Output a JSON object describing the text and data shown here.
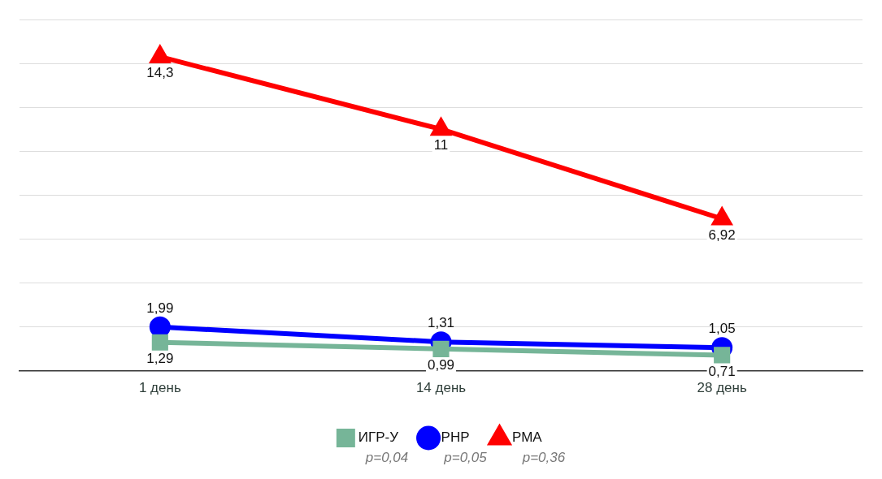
{
  "chart_data": {
    "type": "line",
    "categories": [
      "1 день",
      "14 день",
      "28 день"
    ],
    "series": [
      {
        "name": "ИГР-У",
        "color": "#76b598",
        "values": [
          1.29,
          0.99,
          0.71
        ],
        "marker": "square",
        "value_labels": [
          "1,29",
          "0,99",
          "0,71"
        ]
      },
      {
        "name": "РНР",
        "color": "#0000ff",
        "values": [
          1.99,
          1.31,
          1.05
        ],
        "marker": "circle",
        "value_labels": [
          "1,99",
          "1,31",
          "1,05"
        ]
      },
      {
        "name": "РМА",
        "color": "#ff0000",
        "values": [
          14.3,
          11,
          6.92
        ],
        "marker": "triangle",
        "value_labels": [
          "14,3",
          "11",
          "6,92"
        ]
      }
    ],
    "tick_labels": "x",
    "grid": "y",
    "legend": "bottom",
    "annotations": [
      "p=0,04",
      "p=0,05",
      "p=0,36"
    ]
  }
}
